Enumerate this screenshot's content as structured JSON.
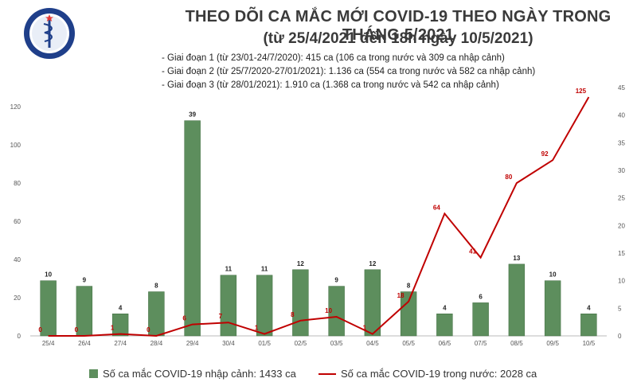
{
  "header": {
    "logo_text": "BỘ Y TẾ · MINISTRY OF HEALTH",
    "title": "THEO DÕI CA MẮC MỚI COVID-19 THEO NGÀY TRONG THÁNG 5/2021",
    "subtitle": "(từ 25/4/2021 đến 18h ngày 10/5/2021)"
  },
  "notes": [
    "- Giai đoạn 1 (từ 23/01-24/7/2020): 415 ca (106 ca trong nước và 309 ca nhập cảnh)",
    "- Giai đoạn 2 (từ 25/7/2020-27/01/2021): 1.136 ca (554 ca trong nước và 582 ca nhập cảnh)",
    "- Giai đoạn 3 (từ 28/01/2021): 1.910 ca (1.368 ca trong nước và 542 ca nhập cảnh)"
  ],
  "colors": {
    "bar": "#5d8e5d",
    "bar_dark": "#3f6b3f",
    "line": "#c00000"
  },
  "chart_data": {
    "type": "bar",
    "categories": [
      "25/4",
      "26/4",
      "27/4",
      "28/4",
      "29/4",
      "30/4",
      "01/5",
      "02/5",
      "03/5",
      "04/5",
      "05/5",
      "06/5",
      "07/5",
      "08/5",
      "09/5",
      "10/5"
    ],
    "series": [
      {
        "name": "Số ca mắc COVID-19 nhập cảnh: 1433 ca",
        "type": "bar",
        "axis": "right",
        "values": [
          10,
          9,
          4,
          8,
          39,
          11,
          11,
          12,
          9,
          12,
          8,
          4,
          6,
          13,
          10,
          4
        ]
      },
      {
        "name": "Số ca mắc COVID-19 trong nước: 2028 ca",
        "type": "line",
        "axis": "left",
        "values": [
          0,
          0,
          1,
          0,
          6,
          7,
          1,
          8,
          10,
          1,
          18,
          64,
          41,
          80,
          92,
          125
        ]
      }
    ],
    "y_left": {
      "ticks": [
        0,
        20,
        40,
        60,
        80,
        100,
        120
      ],
      "ylim": [
        0,
        130
      ]
    },
    "y_right": {
      "ticks": [
        0,
        5,
        10,
        15,
        20,
        25,
        30,
        35,
        40,
        45
      ],
      "ylim": [
        0,
        45
      ]
    },
    "legend_position": "bottom",
    "grid": false
  }
}
